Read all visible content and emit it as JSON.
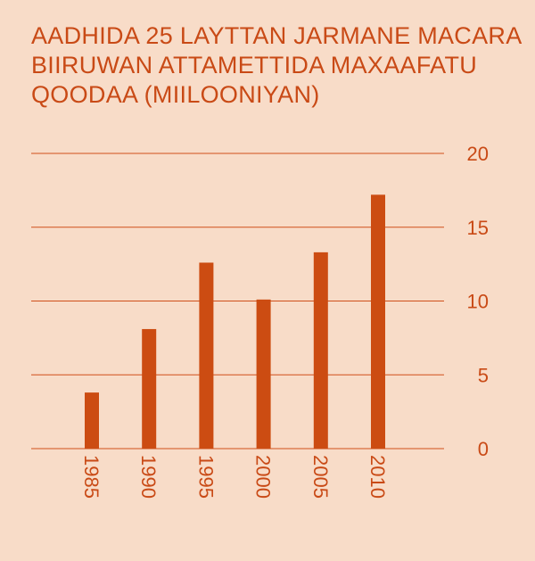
{
  "title_lines": [
    "AADHIDA 25 LAYTTAN JARMANE MACARA",
    "BIIRUWAN ATTAMETTIDA MAXAAFATU",
    "QOODAA (MIILOONIYAN)"
  ],
  "colors": {
    "background": "#f8dcc8",
    "bar": "#cc4c12",
    "text": "#c94a16"
  },
  "chart_data": {
    "type": "bar",
    "title": "AADHIDA 25 LAYTTAN JARMANE MACARA BIIRUWAN ATTAMETTIDA MAXAAFATU QOODAA (MIILOONIYAN)",
    "categories": [
      "1985",
      "1990",
      "1995",
      "2000",
      "2005",
      "2010"
    ],
    "values": [
      3.8,
      8.1,
      12.6,
      10.1,
      13.3,
      17.2
    ],
    "yticks": [
      0,
      5,
      10,
      15,
      20
    ],
    "ylim": [
      0,
      20
    ],
    "xlabel": "",
    "ylabel": "",
    "grid": true,
    "y_axis_side": "right"
  }
}
